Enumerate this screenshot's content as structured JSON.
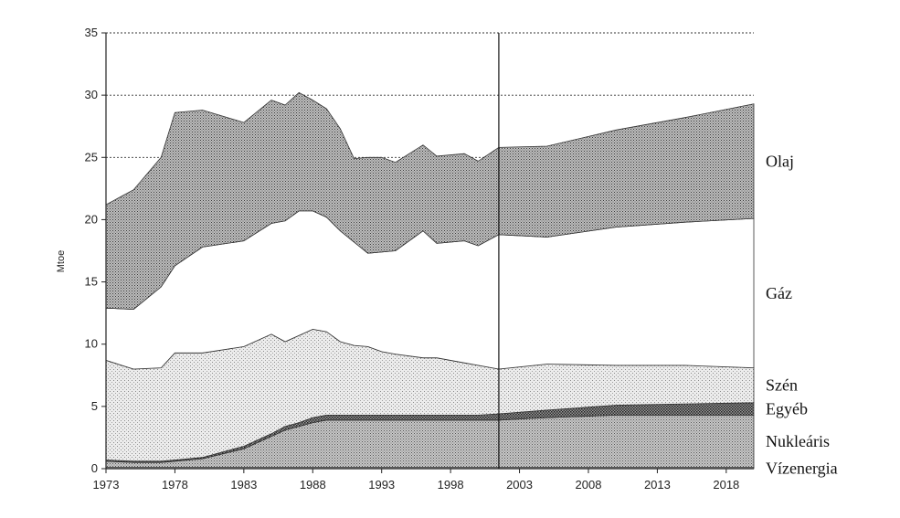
{
  "chart_data": {
    "type": "area",
    "stacked": true,
    "title": "",
    "xlabel": "",
    "ylabel": "Mtoe",
    "xlim": [
      1973,
      2020
    ],
    "ylim": [
      0,
      35
    ],
    "x_ticks": [
      1973,
      1978,
      1983,
      1988,
      1993,
      1998,
      2003,
      2008,
      2013,
      2018
    ],
    "y_ticks": [
      0,
      5,
      10,
      15,
      20,
      25,
      30,
      35
    ],
    "grid": "horizontal dashed at 25, 30, 35",
    "forecast_divider_x": 2001.5,
    "x": [
      1973,
      1975,
      1977,
      1978,
      1980,
      1983,
      1985,
      1986,
      1987,
      1988,
      1989,
      1990,
      1991,
      1992,
      1993,
      1994,
      1996,
      1997,
      1999,
      2000,
      2001.5,
      2005,
      2010,
      2015,
      2020
    ],
    "series": [
      {
        "name": "Vízenergia",
        "values": [
          0.1,
          0.1,
          0.1,
          0.1,
          0.1,
          0.1,
          0.1,
          0.1,
          0.1,
          0.1,
          0.1,
          0.1,
          0.1,
          0.1,
          0.1,
          0.1,
          0.1,
          0.1,
          0.1,
          0.1,
          0.1,
          0.1,
          0.1,
          0.1,
          0.1
        ],
        "color": "#9a9a9a",
        "label_visible": true
      },
      {
        "name": "Nukleáris",
        "values": [
          0.5,
          0.4,
          0.4,
          0.5,
          0.7,
          1.5,
          2.5,
          3.0,
          3.3,
          3.6,
          3.8,
          3.8,
          3.8,
          3.8,
          3.8,
          3.8,
          3.8,
          3.8,
          3.8,
          3.8,
          3.8,
          4.0,
          4.2,
          4.2,
          4.2
        ],
        "color": "#6e6e6e",
        "label_visible": true
      },
      {
        "name": "Egyéb",
        "values": [
          0.1,
          0.1,
          0.1,
          0.1,
          0.1,
          0.2,
          0.2,
          0.3,
          0.3,
          0.4,
          0.4,
          0.4,
          0.4,
          0.4,
          0.4,
          0.4,
          0.4,
          0.4,
          0.4,
          0.4,
          0.5,
          0.6,
          0.8,
          0.9,
          1.0
        ],
        "color": "#4a4a4a",
        "label_visible": true
      },
      {
        "name": "Szén",
        "values": [
          8.0,
          7.4,
          7.5,
          8.6,
          8.4,
          8.0,
          8.0,
          6.8,
          7.0,
          7.1,
          6.7,
          5.9,
          5.6,
          5.5,
          5.1,
          4.9,
          4.6,
          4.6,
          4.2,
          4.0,
          3.6,
          3.7,
          3.2,
          3.1,
          2.8
        ],
        "color": "#d8d8d8",
        "label_visible": true
      },
      {
        "name": "Gáz",
        "values": [
          4.2,
          4.8,
          6.5,
          7.0,
          8.5,
          8.5,
          8.9,
          9.7,
          10.0,
          9.5,
          9.2,
          8.9,
          8.3,
          7.5,
          8.0,
          8.3,
          10.2,
          9.2,
          9.8,
          9.6,
          10.8,
          10.2,
          11.1,
          11.5,
          12.0
        ],
        "color": "#ffffff",
        "label_visible": true
      },
      {
        "name": "Olaj",
        "values": [
          8.3,
          9.6,
          10.4,
          12.3,
          11.0,
          9.5,
          9.9,
          9.3,
          9.5,
          8.9,
          8.7,
          8.2,
          6.7,
          7.7,
          7.6,
          7.1,
          6.9,
          7.0,
          7.0,
          6.8,
          7.0,
          7.3,
          7.8,
          8.4,
          9.2
        ],
        "color": "#8a8a8a",
        "label_visible": true
      }
    ]
  },
  "colors": {
    "axis": "#222222",
    "gridline": "#333333",
    "outline": "#333333"
  }
}
